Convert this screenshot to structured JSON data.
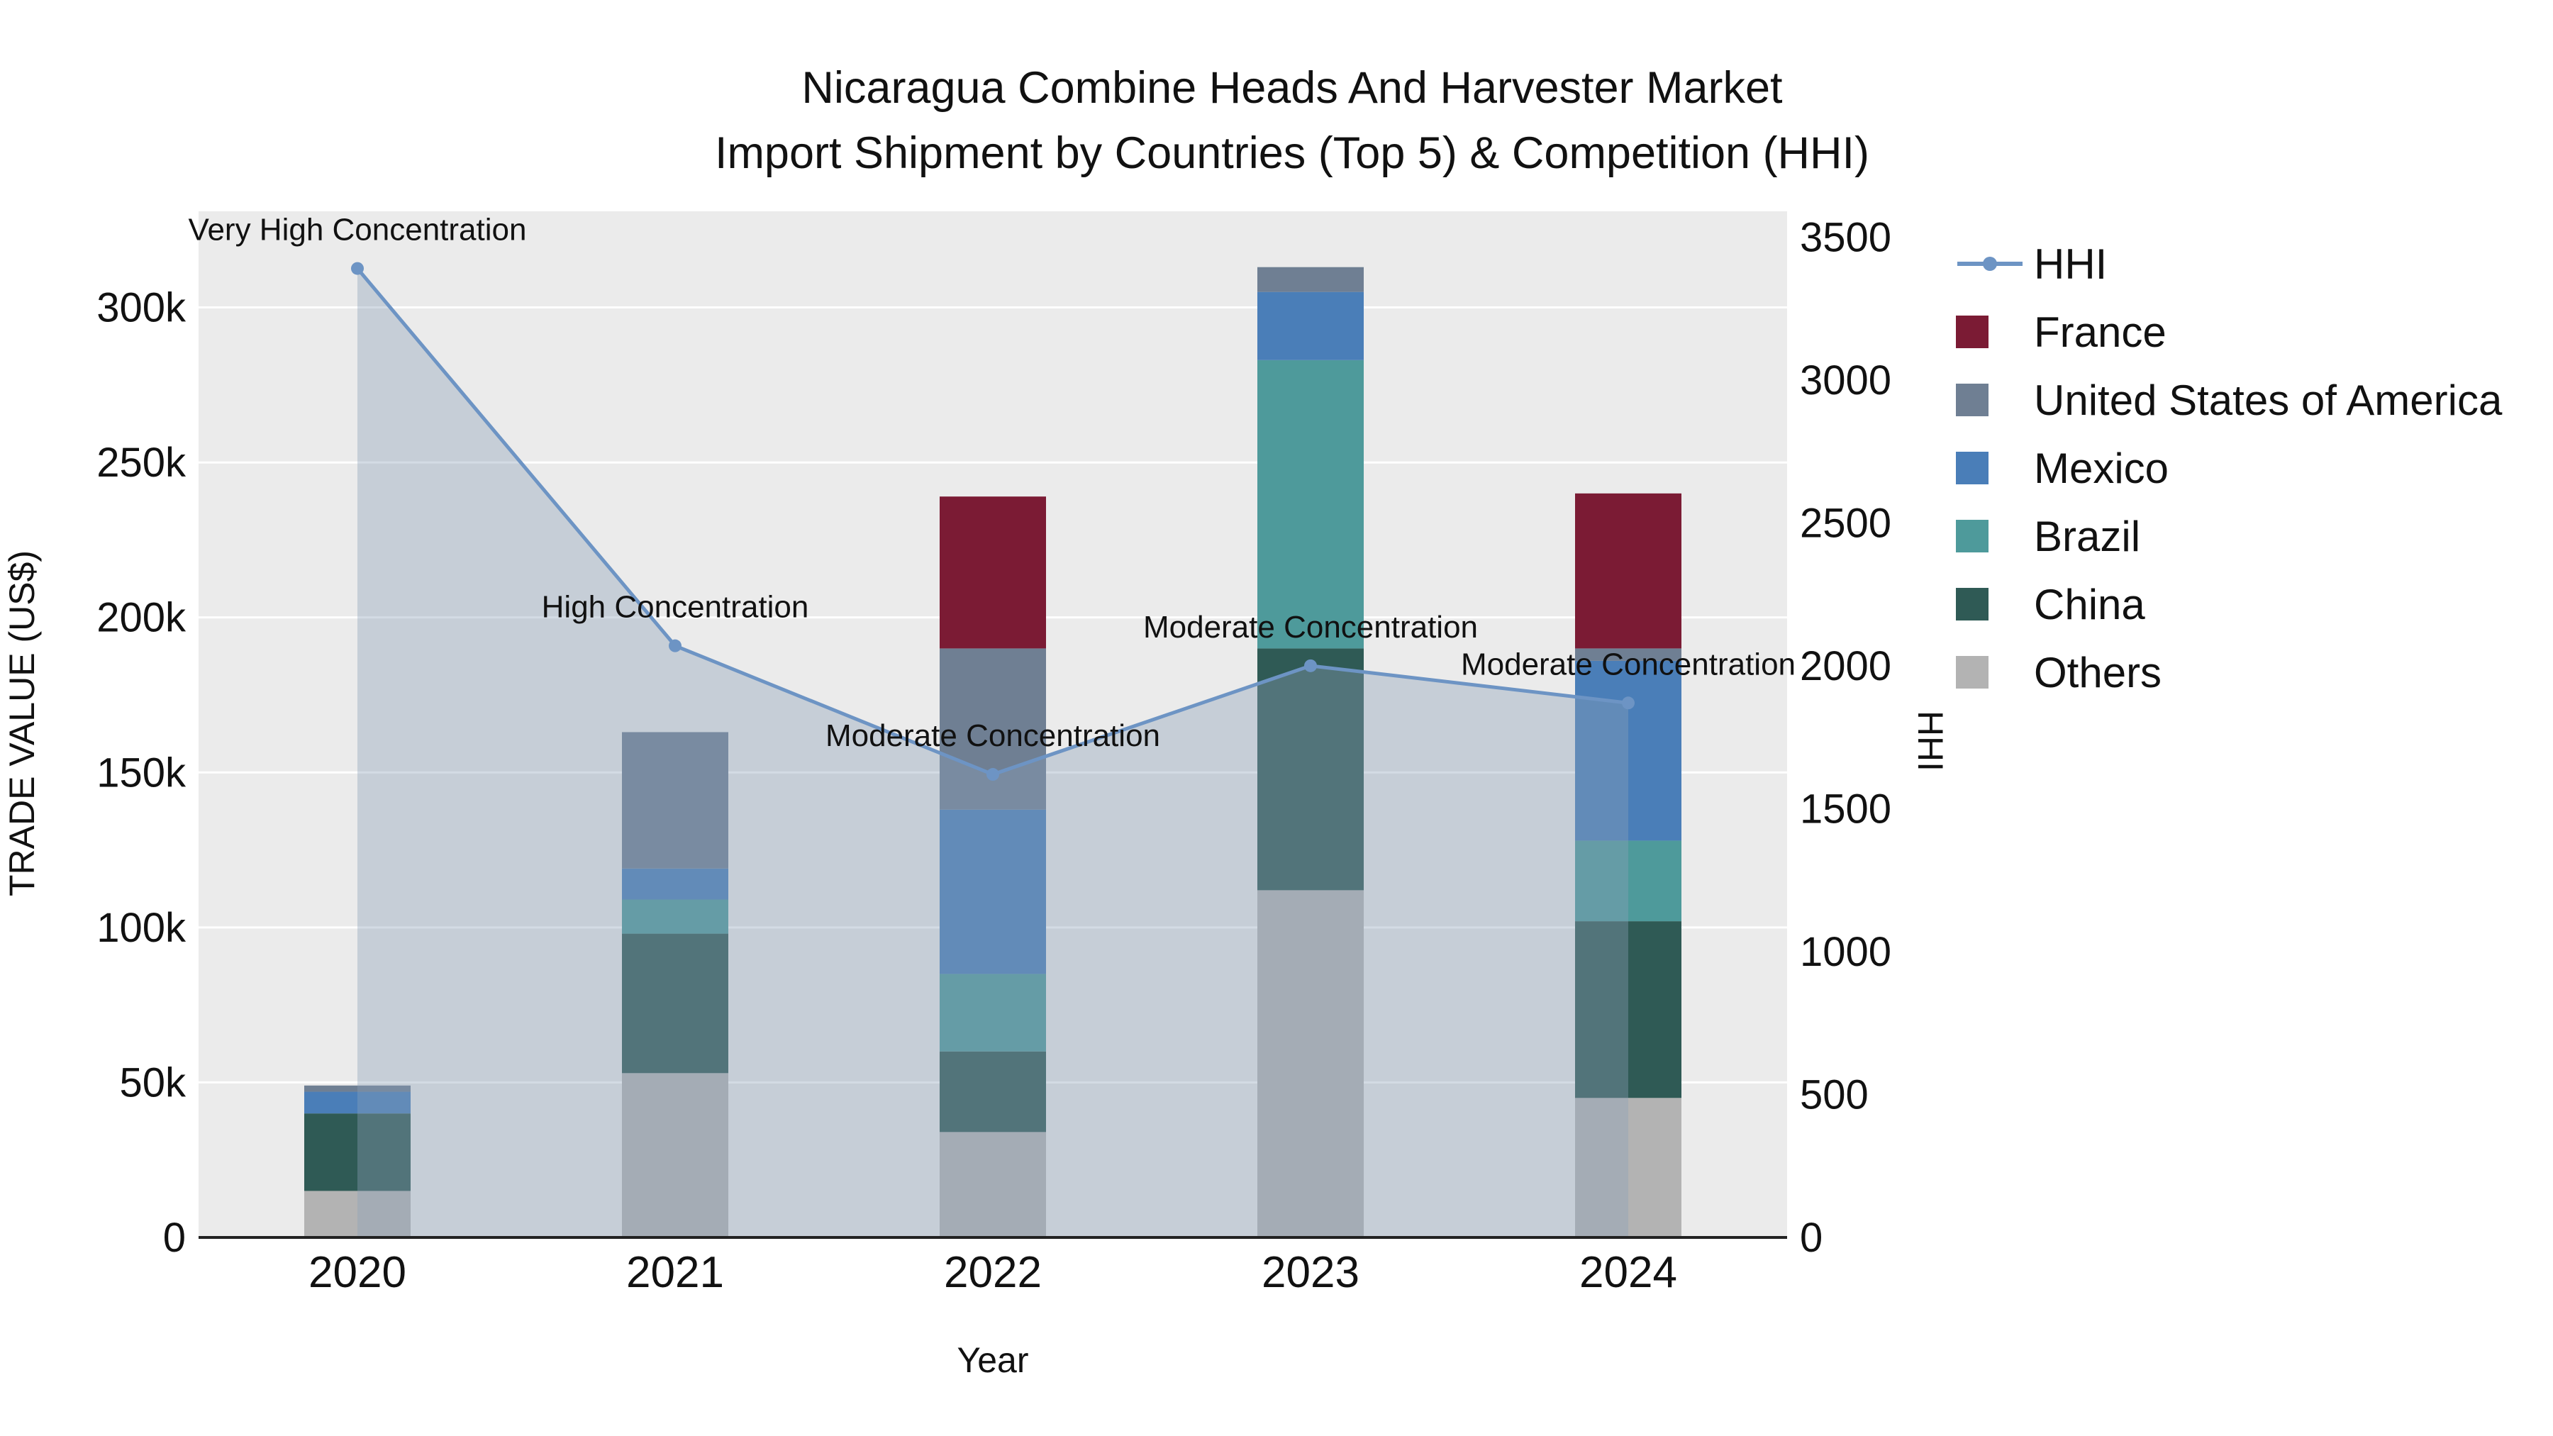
{
  "title": {
    "line1": "Nicaragua Combine Heads And Harvester Market",
    "line2": "Import Shipment by Countries (Top 5) & Competition (HHI)"
  },
  "chart_data": {
    "type": "bar+line",
    "categories": [
      "2020",
      "2021",
      "2022",
      "2023",
      "2024"
    ],
    "xlabel": "Year",
    "ylabel_left": "TRADE VALUE (US$)",
    "ylabel_right": "HHI",
    "left_axis": {
      "min": 0,
      "max": 331000,
      "ticks": [
        0,
        50000,
        100000,
        150000,
        200000,
        250000,
        300000
      ],
      "tick_labels": [
        "0",
        "50k",
        "100k",
        "150k",
        "200k",
        "250k",
        "300k"
      ]
    },
    "right_axis": {
      "min": 0,
      "max": 3590,
      "ticks": [
        0,
        500,
        1000,
        1500,
        2000,
        2500,
        3000,
        3500
      ]
    },
    "bar_series": [
      {
        "name": "France",
        "color": "#7B1B34",
        "values": [
          0,
          0,
          49000,
          0,
          50000
        ]
      },
      {
        "name": "United States of America",
        "color": "#6F7F93",
        "values": [
          2000,
          44000,
          52000,
          8000,
          4000
        ]
      },
      {
        "name": "Mexico",
        "color": "#4A7EB8",
        "values": [
          7000,
          10000,
          53000,
          22000,
          58000
        ]
      },
      {
        "name": "Brazil",
        "color": "#4E9A9B",
        "values": [
          0,
          11000,
          25000,
          93000,
          26000
        ]
      },
      {
        "name": "China",
        "color": "#2F5A55",
        "values": [
          25000,
          45000,
          26000,
          78000,
          57000
        ]
      },
      {
        "name": "Others",
        "color": "#B3B3B3",
        "values": [
          15000,
          53000,
          34000,
          112000,
          45000
        ]
      }
    ],
    "stack_order": [
      "Others",
      "China",
      "Brazil",
      "Mexico",
      "United States of America",
      "France"
    ],
    "line_series": {
      "name": "HHI",
      "color": "#6D94C4",
      "fill": "rgba(140,160,185,0.38)",
      "values": [
        3390,
        2070,
        1620,
        2000,
        1870
      ]
    },
    "annotations": [
      {
        "year": "2020",
        "text": "Very High Concentration"
      },
      {
        "year": "2021",
        "text": "High Concentration"
      },
      {
        "year": "2022",
        "text": "Moderate Concentration"
      },
      {
        "year": "2023",
        "text": "Moderate Concentration"
      },
      {
        "year": "2024",
        "text": "Moderate Concentration"
      }
    ],
    "legend": [
      {
        "label": "HHI",
        "type": "line",
        "color": "#6D94C4"
      },
      {
        "label": "France",
        "type": "square",
        "color": "#7B1B34"
      },
      {
        "label": "United States of America",
        "type": "square",
        "color": "#6F7F93"
      },
      {
        "label": "Mexico",
        "type": "square",
        "color": "#4A7EB8"
      },
      {
        "label": "Brazil",
        "type": "square",
        "color": "#4E9A9B"
      },
      {
        "label": "China",
        "type": "square",
        "color": "#2F5A55"
      },
      {
        "label": "Others",
        "type": "square",
        "color": "#B3B3B3"
      }
    ],
    "plot_bg": "#EBEBEB",
    "grid_color": "#FFFFFF",
    "axis_line_color": "#222222",
    "text_color": "#111111"
  }
}
